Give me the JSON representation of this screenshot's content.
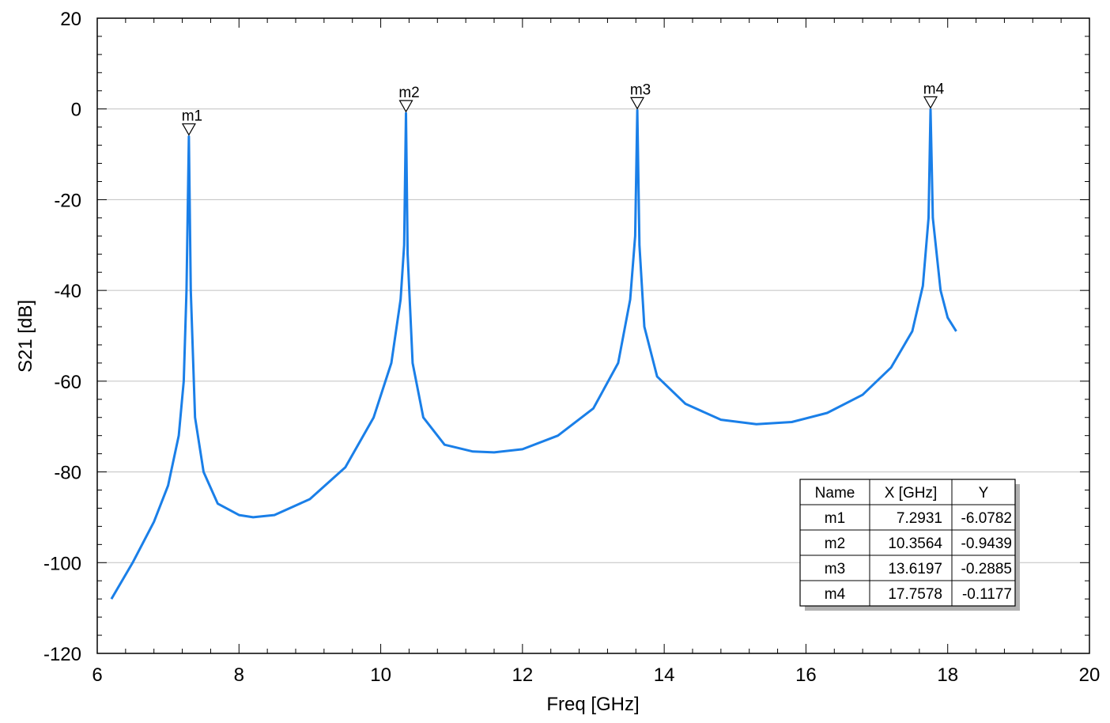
{
  "chart_data": {
    "type": "line",
    "xlabel": "Freq [GHz]",
    "ylabel": "S21 [dB]",
    "xlim": [
      6,
      20
    ],
    "ylim": [
      -120,
      20
    ],
    "x_ticks": [
      6,
      8,
      10,
      12,
      14,
      16,
      18,
      20
    ],
    "y_ticks": [
      20,
      0,
      -20,
      -40,
      -60,
      -80,
      -100,
      -120
    ],
    "grid": "horizontal",
    "line_color": "#1a7fe8",
    "series": [
      {
        "x": [
          6.2,
          6.5,
          6.8,
          7.0,
          7.15,
          7.22,
          7.26,
          7.2931,
          7.32,
          7.38,
          7.5,
          7.7,
          8.0,
          8.2,
          8.5,
          9.0,
          9.5,
          9.9,
          10.15,
          10.28,
          10.33,
          10.3564,
          10.38,
          10.45,
          10.6,
          10.9,
          11.3,
          11.6,
          12.0,
          12.5,
          13.0,
          13.35,
          13.52,
          13.59,
          13.6197,
          13.65,
          13.72,
          13.9,
          14.3,
          14.8,
          15.3,
          15.8,
          16.3,
          16.8,
          17.2,
          17.5,
          17.65,
          17.73,
          17.7578,
          17.79,
          17.9,
          18.0,
          18.12
        ],
        "y": [
          -108,
          -100,
          -91,
          -83,
          -72,
          -60,
          -40,
          -6.0782,
          -40,
          -68,
          -80,
          -87,
          -89.5,
          -90,
          -89.5,
          -86,
          -79,
          -68,
          -56,
          -42,
          -30,
          -0.9439,
          -32,
          -56,
          -68,
          -74,
          -75.5,
          -75.7,
          -75,
          -72,
          -66,
          -56,
          -42,
          -28,
          -0.2885,
          -30,
          -48,
          -59,
          -65,
          -68.5,
          -69.5,
          -69,
          -67,
          -63,
          -57,
          -49,
          -39,
          -24,
          -0.1177,
          -24,
          -40,
          -46,
          -49
        ]
      }
    ],
    "markers": [
      {
        "name": "m1",
        "x": 7.2931,
        "y": -6.0782
      },
      {
        "name": "m2",
        "x": 10.3564,
        "y": -0.9439
      },
      {
        "name": "m3",
        "x": 13.6197,
        "y": -0.2885
      },
      {
        "name": "m4",
        "x": 17.7578,
        "y": -0.1177
      }
    ],
    "table": {
      "headers": [
        "Name",
        "X [GHz]",
        "Y"
      ],
      "rows": [
        [
          "m1",
          "7.2931",
          "-6.0782"
        ],
        [
          "m2",
          "10.3564",
          "-0.9439"
        ],
        [
          "m3",
          "13.6197",
          "-0.2885"
        ],
        [
          "m4",
          "17.7578",
          "-0.1177"
        ]
      ]
    }
  }
}
